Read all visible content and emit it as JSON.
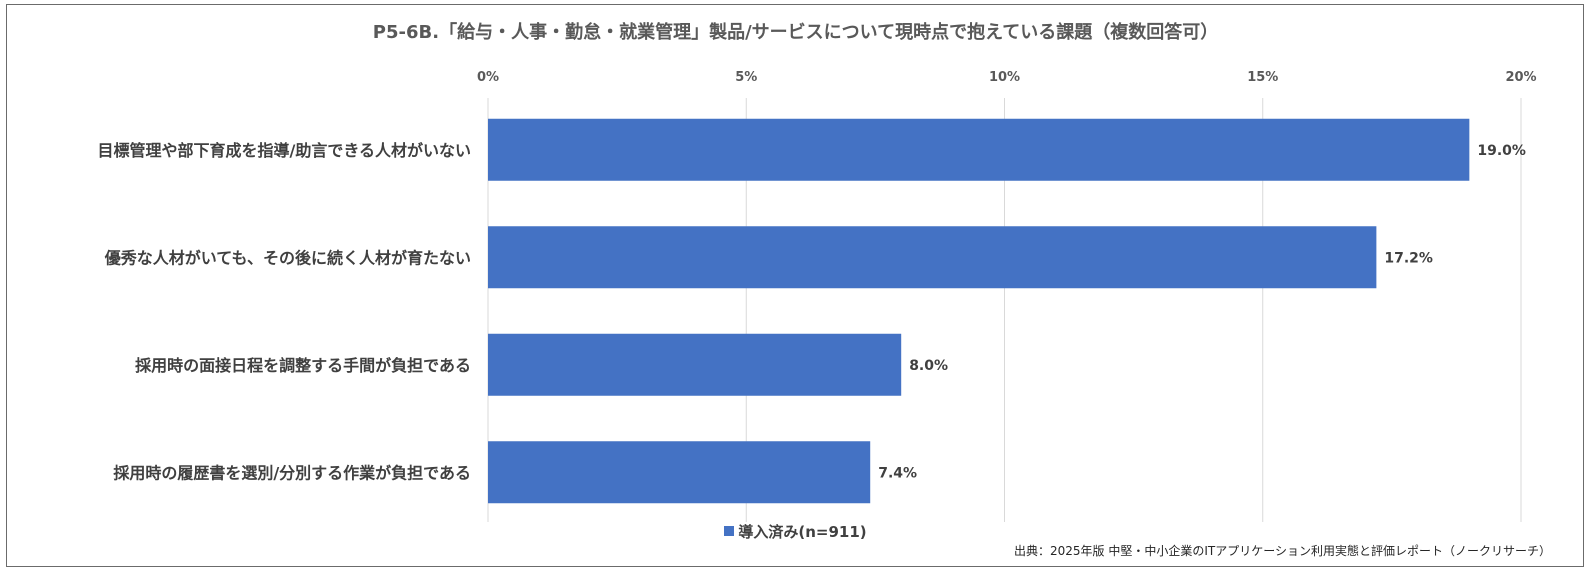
{
  "chart_data": {
    "type": "bar",
    "orientation": "horizontal",
    "title": "P5-6B.「給与・人事・勤怠・就業管理」製品/サービスについて現時点で抱えている課題（複数回答可）",
    "categories": [
      "目標管理や部下育成を指導/助言できる人材がいない",
      "優秀な人材がいても、その後に続く人材が育たない",
      "採用時の面接日程を調整する手間が負担である",
      "採用時の履歴書を選別/分別する作業が負担である"
    ],
    "series": [
      {
        "name": "導入済み(n=911)",
        "values": [
          19.0,
          17.2,
          8.0,
          7.4
        ],
        "color": "#4472C4"
      }
    ],
    "data_labels": [
      "19.0%",
      "17.2%",
      "8.0%",
      "7.4%"
    ],
    "xlim": [
      0,
      20
    ],
    "xticks": [
      0,
      5,
      10,
      15,
      20
    ],
    "xtick_labels": [
      "0%",
      "5%",
      "10%",
      "15%",
      "20%"
    ],
    "axis_position": "top",
    "grid": true,
    "legend_position": "bottom"
  },
  "source": "出典：2025年版 中堅・中小企業のITアプリケーション利用実態と評価レポート（ノークリサーチ）",
  "colors": {
    "bar": "#4472C4",
    "grid": "#d9d9d9"
  }
}
